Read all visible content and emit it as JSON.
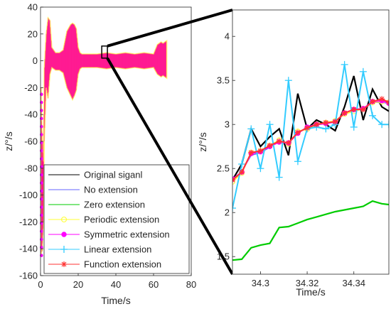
{
  "chart_data": [
    {
      "type": "line",
      "title": "",
      "xlabel": "Time/s",
      "ylabel": "z/°/s",
      "xlim": [
        0,
        80
      ],
      "ylim": [
        -160,
        40
      ],
      "xticks": [
        0,
        20,
        40,
        60,
        80
      ],
      "yticks": [
        -160,
        -140,
        -120,
        -100,
        -80,
        -60,
        -40,
        -20,
        0,
        20,
        40
      ],
      "grid": false,
      "legend_position": "lower-right",
      "series": [
        {
          "name": "Original siganl",
          "color": "#000000",
          "marker": "none"
        },
        {
          "name": "No extension",
          "color": "#6666ff",
          "marker": "none"
        },
        {
          "name": "Zero extension",
          "color": "#00cc00",
          "marker": "none"
        },
        {
          "name": "Periodic extension",
          "color": "#ffff33",
          "marker": "circle"
        },
        {
          "name": "Symmetric extension",
          "color": "#ff00ff",
          "marker": "dot"
        },
        {
          "name": "Linear extension",
          "color": "#33ccff",
          "marker": "plus"
        },
        {
          "name": "Function extension",
          "color": "#ff3333",
          "marker": "star"
        }
      ],
      "signal_envelope": {
        "x": [
          0.3,
          0.6,
          0.9,
          1.2,
          1.5,
          2,
          3,
          4,
          5,
          6,
          7,
          8,
          10,
          12,
          14,
          16,
          17,
          18,
          19,
          20,
          21,
          22,
          24,
          26,
          28,
          30,
          35,
          40,
          45,
          50,
          55,
          60,
          62,
          64,
          65,
          66,
          67
        ],
        "upper": [
          -20,
          -45,
          -60,
          -62,
          -75,
          -5,
          20,
          32,
          30,
          10,
          8,
          6,
          6,
          8,
          22,
          27,
          28,
          27,
          24,
          10,
          6,
          5,
          5,
          5,
          5,
          5,
          6,
          5,
          6,
          5,
          6,
          5,
          12,
          14,
          13,
          14,
          15
        ],
        "lower": [
          -145,
          -140,
          -142,
          -130,
          -120,
          -60,
          -20,
          -28,
          -10,
          -5,
          -6,
          -7,
          -7,
          -9,
          -20,
          -26,
          -29,
          -26,
          -22,
          -10,
          -6,
          -5,
          -5,
          -5,
          -5,
          -5,
          -6,
          -5,
          -6,
          -5,
          -6,
          -5,
          -10,
          -12,
          -11,
          -12,
          -13
        ]
      },
      "zoom_box": {
        "x": [
          32.5,
          35.5
        ],
        "y": [
          2,
          11
        ]
      }
    },
    {
      "type": "line",
      "title": "",
      "xlabel": "Time/s",
      "ylabel": "z/°/s",
      "xlim": [
        34.288,
        34.355
      ],
      "ylim": [
        1.3,
        4.3
      ],
      "xticks": [
        34.3,
        34.32,
        34.34
      ],
      "xtick_labels": [
        "34.3",
        "34.32",
        "34.34"
      ],
      "yticks": [
        1.5,
        2,
        2.5,
        3,
        3.5,
        4
      ],
      "grid": false,
      "x": [
        34.288,
        34.292,
        34.296,
        34.3,
        34.304,
        34.308,
        34.312,
        34.316,
        34.32,
        34.324,
        34.328,
        34.332,
        34.336,
        34.34,
        34.344,
        34.348,
        34.352,
        34.355
      ],
      "series": [
        {
          "name": "Original siganl",
          "color": "#000000",
          "values": [
            2.37,
            2.55,
            2.95,
            2.75,
            2.86,
            2.95,
            2.65,
            3.35,
            2.95,
            3.05,
            3.0,
            2.93,
            3.2,
            3.55,
            3.05,
            3.4,
            3.2,
            3.15
          ]
        },
        {
          "name": "No extension",
          "color": "#6666ff",
          "values": [
            2.37,
            2.47,
            2.65,
            2.68,
            2.74,
            2.81,
            2.78,
            2.91,
            2.96,
            2.99,
            3.02,
            3.03,
            3.12,
            3.16,
            3.17,
            3.25,
            3.25,
            3.24
          ]
        },
        {
          "name": "Zero extension",
          "color": "#00cc00",
          "values": [
            1.46,
            1.47,
            1.6,
            1.63,
            1.65,
            1.83,
            1.84,
            1.88,
            1.92,
            1.95,
            1.98,
            2.01,
            2.03,
            2.05,
            2.07,
            2.13,
            2.1,
            2.09
          ]
        },
        {
          "name": "Periodic extension",
          "color": "#ffff33",
          "values": [
            2.35,
            2.45,
            2.68,
            2.7,
            2.76,
            2.82,
            2.78,
            2.92,
            2.95,
            3.0,
            3.02,
            3.04,
            3.12,
            3.15,
            3.18,
            3.25,
            3.26,
            3.25
          ]
        },
        {
          "name": "Symmetric extension",
          "color": "#ff00ff",
          "values": [
            2.38,
            2.46,
            2.67,
            2.69,
            2.75,
            2.8,
            2.79,
            2.9,
            2.97,
            3.0,
            3.01,
            3.03,
            3.13,
            3.17,
            3.18,
            3.26,
            3.27,
            3.24
          ]
        },
        {
          "name": "Linear extension",
          "color": "#33ccff",
          "values": [
            2.05,
            2.55,
            2.95,
            2.5,
            3.0,
            2.4,
            3.5,
            2.58,
            2.95,
            2.97,
            2.95,
            3.0,
            3.68,
            2.97,
            3.6,
            3.1,
            3.0,
            3.0
          ]
        },
        {
          "name": "Function extension",
          "color": "#ff3333",
          "values": [
            2.37,
            2.46,
            2.68,
            2.7,
            2.76,
            2.81,
            2.79,
            2.91,
            2.96,
            3.0,
            3.02,
            3.03,
            3.13,
            3.17,
            3.17,
            3.26,
            3.29,
            3.25
          ]
        }
      ]
    }
  ]
}
